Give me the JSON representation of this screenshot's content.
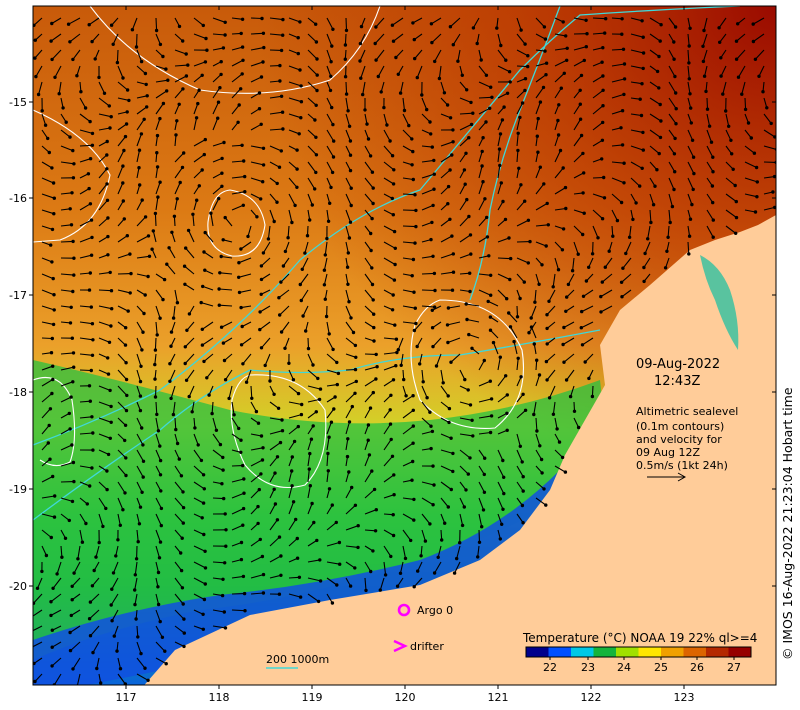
{
  "map": {
    "axes": {
      "lat_ticks": [
        "-15",
        "-16",
        "-17",
        "-18",
        "-19",
        "-20"
      ],
      "lon_ticks": [
        "117",
        "118",
        "119",
        "120",
        "121",
        "122",
        "123"
      ]
    },
    "info": {
      "date": "09-Aug-2022",
      "time": "12:43Z",
      "alt_lines": [
        "Altimetric sealevel",
        "(0.1m contours)",
        "and velocity for",
        "09 Aug 12Z",
        "0.5m/s (1kt 24h)"
      ]
    },
    "legend": {
      "argo": "Argo 0",
      "drifter": "drifter",
      "bathy": "200  1000m"
    },
    "colorbar": {
      "title": "Temperature (°C) NOAA 19 22% ql>=4",
      "ticks": [
        "22",
        "23",
        "24",
        "25",
        "26",
        "27"
      ],
      "colors": [
        "#00008c",
        "#0050ff",
        "#00c8e6",
        "#14b43c",
        "#a0e000",
        "#ffe600",
        "#f0a000",
        "#dc6400",
        "#b42800",
        "#960000"
      ]
    },
    "credit": "© IMOS 16-Aug-2022 21:23:04 Hobart time"
  }
}
